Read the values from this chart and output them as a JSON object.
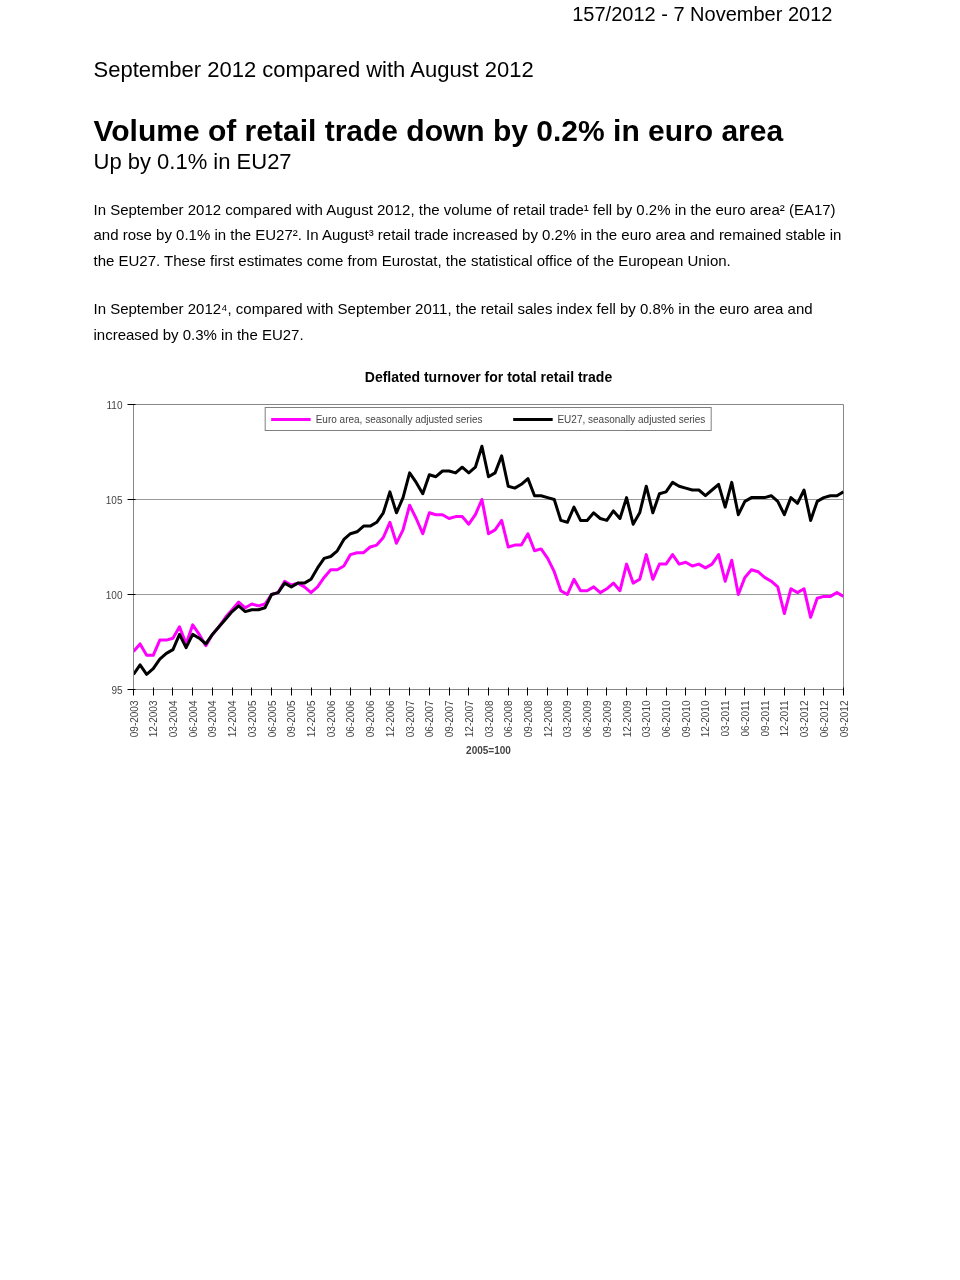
{
  "chart_data": {
    "type": "line",
    "title": "Deflated turnover for total retail trade",
    "xlabel": "2005=100",
    "annotations": [
      "157/2012  -  7 November 2012",
      "September 2012 compared with August 2012",
      "Volume of retail trade down by 0.2% in euro area",
      "Up by 0.1% in EU27",
      "In September 2012 compared with August 2012, the volume of retail trade¹ fell by 0.2% in the euro area² (EA17) and rose by 0.1% in the EU27². In August³ retail trade increased by 0.2% in the euro area and remained stable in the EU27. These first estimates come from Eurostat, the statistical office of the European Union.",
      "In September 2012⁴, compared with September 2011, the retail sales index fell by 0.8% in the euro area and increased by 0.3% in the EU27."
    ],
    "categories": [
      "09-2003",
      null,
      null,
      "12-2003",
      null,
      null,
      "03-2004",
      null,
      null,
      "06-2004",
      null,
      null,
      "09-2004",
      null,
      null,
      "12-2004",
      null,
      null,
      "03-2005",
      null,
      null,
      "06-2005",
      null,
      null,
      "09-2005",
      null,
      null,
      "12-2005",
      null,
      null,
      "03-2006",
      null,
      null,
      "06-2006",
      null,
      null,
      "09-2006",
      null,
      null,
      "12-2006",
      null,
      null,
      "03-2007",
      null,
      null,
      "06-2007",
      null,
      null,
      "09-2007",
      null,
      null,
      "12-2007",
      null,
      null,
      "03-2008",
      null,
      null,
      "06-2008",
      null,
      null,
      "09-2008",
      null,
      null,
      "12-2008",
      null,
      null,
      "03-2009",
      null,
      null,
      "06-2009",
      null,
      null,
      "09-2009",
      null,
      null,
      "12-2009",
      null,
      null,
      "03-2010",
      null,
      null,
      "06-2010",
      null,
      null,
      "09-2010",
      null,
      null,
      "12-2010",
      null,
      null,
      "03-2011",
      null,
      null,
      "06-2011",
      null,
      null,
      "09-2011",
      null,
      null,
      "12-2011",
      null,
      null,
      "03-2012",
      null,
      null,
      "06-2012",
      null,
      null,
      "09-2012"
    ],
    "series": [
      {
        "name": "Euro area, seasonally adjusted series",
        "color": "#ff00ff",
        "values": [
          97.0,
          97.4,
          96.8,
          96.8,
          97.6,
          97.6,
          97.7,
          98.3,
          97.4,
          98.4,
          97.9,
          97.3,
          97.9,
          98.3,
          98.8,
          99.2,
          99.6,
          99.3,
          99.5,
          99.4,
          99.5,
          100.0,
          100.1,
          100.7,
          100.5,
          100.6,
          100.4,
          100.1,
          100.4,
          100.9,
          101.3,
          101.3,
          101.5,
          102.1,
          102.2,
          102.2,
          102.5,
          102.6,
          103.0,
          103.8,
          102.7,
          103.4,
          104.7,
          104.0,
          103.2,
          104.3,
          104.2,
          104.2,
          104.0,
          104.1,
          104.1,
          103.7,
          104.2,
          105.0,
          103.2,
          103.4,
          103.9,
          102.5,
          102.6,
          102.6,
          103.2,
          102.3,
          102.4,
          101.9,
          101.2,
          100.2,
          100.0,
          100.8,
          100.2,
          100.2,
          100.4,
          100.1,
          100.3,
          100.6,
          100.2,
          101.6,
          100.6,
          100.8,
          102.1,
          100.8,
          101.6,
          101.6,
          102.1,
          101.6,
          101.7,
          101.5,
          101.6,
          101.4,
          101.6,
          102.1,
          100.7,
          101.8,
          100.0,
          100.9,
          101.3,
          101.2,
          100.9,
          100.7,
          100.4,
          99.0,
          100.3,
          100.1,
          100.3,
          98.8,
          99.8,
          99.9,
          99.9,
          100.1,
          99.9
        ]
      },
      {
        "name": "EU27, seasonally adjusted series",
        "color": "#000000",
        "values": [
          95.8,
          96.3,
          95.8,
          96.1,
          96.6,
          96.9,
          97.1,
          97.9,
          97.2,
          97.9,
          97.7,
          97.4,
          97.9,
          98.3,
          98.7,
          99.1,
          99.4,
          99.1,
          99.2,
          99.2,
          99.3,
          100.0,
          100.1,
          100.6,
          100.4,
          100.6,
          100.6,
          100.8,
          101.4,
          101.9,
          102.0,
          102.3,
          102.9,
          103.2,
          103.3,
          103.6,
          103.6,
          103.8,
          104.3,
          105.4,
          104.3,
          105.1,
          106.4,
          105.9,
          105.3,
          106.3,
          106.2,
          106.5,
          106.5,
          106.4,
          106.7,
          106.4,
          106.7,
          107.8,
          106.2,
          106.4,
          107.3,
          105.7,
          105.6,
          105.8,
          106.1,
          105.2,
          105.2,
          105.1,
          105.0,
          103.9,
          103.8,
          104.6,
          103.9,
          103.9,
          104.3,
          104.0,
          103.9,
          104.4,
          104.0,
          105.1,
          103.7,
          104.3,
          105.7,
          104.3,
          105.3,
          105.4,
          105.9,
          105.7,
          105.6,
          105.5,
          105.5,
          105.2,
          105.5,
          105.8,
          104.6,
          105.9,
          104.2,
          104.9,
          105.1,
          105.1,
          105.1,
          105.2,
          104.9,
          104.2,
          105.1,
          104.8,
          105.5,
          103.9,
          104.9,
          105.1,
          105.2,
          105.2,
          105.4
        ]
      }
    ],
    "ylim": [
      95,
      110
    ],
    "yticks": [
      95,
      100,
      105,
      110
    ],
    "grid": "y",
    "legend": "top",
    "marker": "none",
    "line_style": "solid"
  }
}
